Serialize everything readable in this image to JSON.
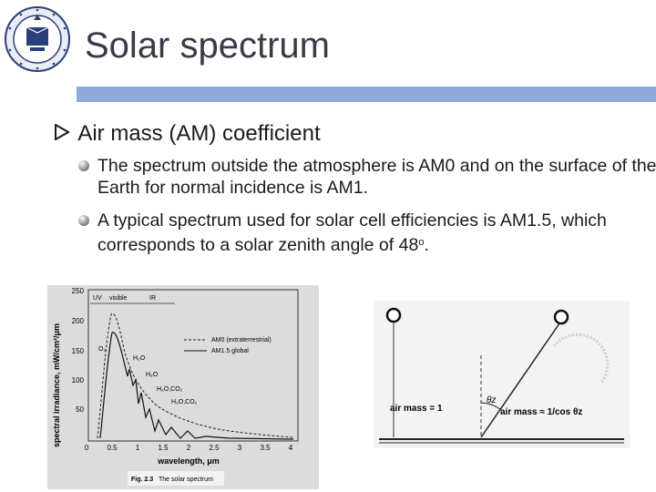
{
  "slide": {
    "title": "Solar spectrum",
    "bullet": "Air mass (AM) coefficient",
    "sub_bullets": [
      "The spectrum outside the atmosphere is AM0 and on the surface of the Earth for normal incidence is AM1.",
      "A typical spectrum used for solar cell efficiencies is AM1.5, which corresponds to a solar zenith angle of 48"
    ],
    "degree_symbol": "o",
    "period": "."
  },
  "figure_spectrum": {
    "ylabel": "spectral irradiance, mW/cm²/μm",
    "xlabel": "wavelength, μm",
    "y_ticks": [
      "250",
      "200",
      "150",
      "100",
      "50",
      "0"
    ],
    "x_ticks": [
      "0",
      "0.5",
      "1",
      "1.5",
      "2",
      "2.5",
      "3",
      "3.5",
      "4"
    ],
    "bands": [
      "UV",
      "visible",
      "IR"
    ],
    "legend": [
      "AM0 (extraterrestrial)",
      "AM1.5 global"
    ],
    "annotations": [
      "O₃",
      "H₂O",
      "H₂O",
      "H₂O,CO₂",
      "H₂O,CO₂"
    ],
    "caption_num": "Fig. 2.3",
    "caption_text": "The solar spectrum"
  },
  "figure_airmass": {
    "label_left": "air mass = 1",
    "label_right": "air mass ≈ 1/cos θz",
    "angle": "θz"
  },
  "colors": {
    "accent_bar": "#8eaadb",
    "title": "#3a3a48"
  },
  "icons": [
    "university-seal-icon",
    "arrow-bullet-icon",
    "sphere-bullet-icon",
    "sun-icon"
  ]
}
